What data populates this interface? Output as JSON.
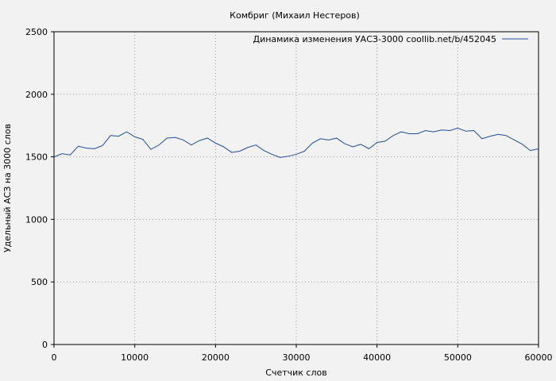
{
  "chart_data": {
    "type": "line",
    "title": "Комбриг (Михаил Нестеров)",
    "xlabel": "Счетчик слов",
    "ylabel": "Удельный АСЗ на 3000 слов",
    "xlim": [
      0,
      60000
    ],
    "ylim": [
      0,
      2500
    ],
    "x_ticks": [
      0,
      10000,
      20000,
      30000,
      40000,
      50000,
      60000
    ],
    "y_ticks": [
      0,
      500,
      1000,
      1500,
      2000,
      2500
    ],
    "x_tick_labels": [
      "0",
      "10000",
      "20000",
      "30000",
      "40000",
      "50000",
      "60000"
    ],
    "y_tick_labels": [
      "0",
      "500",
      "1000",
      "1500",
      "2000",
      "2500"
    ],
    "grid": true,
    "legend_position": "top-right",
    "colors": {
      "line": "#1f4e9c",
      "background": "#f2f2f2",
      "grid": "#999999",
      "axis": "#000000"
    },
    "series": [
      {
        "name": "Динамика изменения УАСЗ-3000  coollib.net/b/452045",
        "x": [
          0,
          1000,
          2000,
          3000,
          4000,
          5000,
          6000,
          7000,
          8000,
          9000,
          10000,
          11000,
          12000,
          13000,
          14000,
          15000,
          16000,
          17000,
          18000,
          19000,
          20000,
          21000,
          22000,
          23000,
          24000,
          25000,
          26000,
          27000,
          28000,
          29000,
          30000,
          31000,
          32000,
          33000,
          34000,
          35000,
          36000,
          37000,
          38000,
          39000,
          40000,
          41000,
          42000,
          43000,
          44000,
          45000,
          46000,
          47000,
          48000,
          49000,
          50000,
          51000,
          52000,
          53000,
          54000,
          55000,
          56000,
          57000,
          58000,
          59000,
          60000
        ],
        "values": [
          1500,
          1525,
          1515,
          1585,
          1570,
          1565,
          1590,
          1670,
          1665,
          1700,
          1660,
          1640,
          1560,
          1595,
          1650,
          1655,
          1635,
          1595,
          1630,
          1650,
          1610,
          1580,
          1535,
          1545,
          1575,
          1595,
          1550,
          1520,
          1495,
          1505,
          1520,
          1545,
          1610,
          1645,
          1635,
          1650,
          1605,
          1580,
          1600,
          1565,
          1615,
          1625,
          1670,
          1700,
          1685,
          1685,
          1710,
          1700,
          1715,
          1710,
          1730,
          1705,
          1710,
          1645,
          1665,
          1680,
          1670,
          1635,
          1600,
          1550,
          1565
        ]
      }
    ]
  }
}
